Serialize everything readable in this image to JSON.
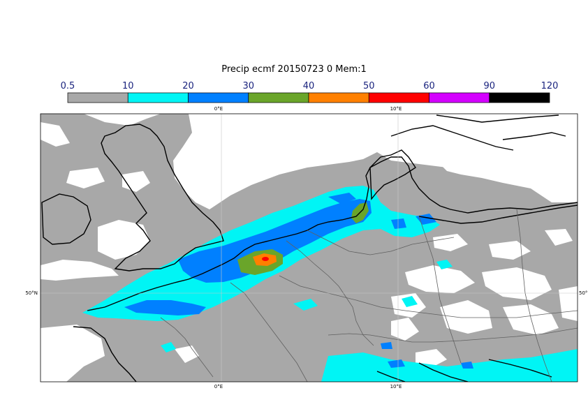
{
  "title": "Precip ecmf 20150723 0 Mem:1",
  "legend": {
    "levels": [
      "0.5",
      "10",
      "20",
      "30",
      "40",
      "50",
      "60",
      "90",
      "120"
    ],
    "colors": [
      "#a8a8a8",
      "#00f5f5",
      "#0080ff",
      "#6aa52a",
      "#ff8000",
      "#ff0000",
      "#d400ff",
      "#000000"
    ]
  },
  "axes": {
    "lon_top": [
      "0°E",
      "10°E"
    ],
    "lon_bottom": [
      "0°E",
      "10°E"
    ],
    "lat_left": "50°N",
    "lat_right": "50°"
  },
  "colors": {
    "land_precip_bg": "#a8a8a8",
    "coast": "#000000",
    "border": "#606060"
  }
}
